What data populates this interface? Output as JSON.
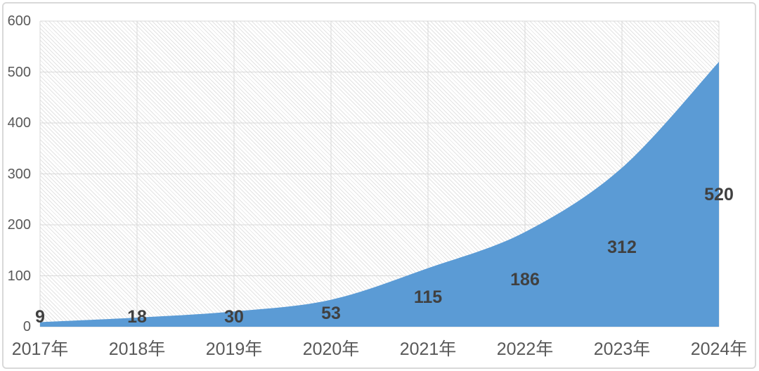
{
  "chart": {
    "background_color": "#FFFFFF",
    "frame_color": "#D9D9D9"
  },
  "chart_data": {
    "type": "area",
    "title": "",
    "xlabel": "",
    "ylabel": "",
    "categories": [
      "2017年",
      "2018年",
      "2019年",
      "2020年",
      "2021年",
      "2022年",
      "2023年",
      "2024年"
    ],
    "values": [
      9,
      18,
      30,
      53,
      115,
      186,
      312,
      520
    ],
    "data_labels": [
      "9",
      "18",
      "30",
      "53",
      "115",
      "186",
      "312",
      "520"
    ],
    "ylim": [
      0,
      600
    ],
    "yticks": [
      0,
      100,
      200,
      300,
      400,
      500,
      600
    ],
    "area_color": "#5B9BD5",
    "data_label_color": "#404040",
    "axis_label_color": "#595959",
    "grid_color": "#D9D9D9",
    "plot_hatch_color": "#E3E3E3",
    "smooth_line": true,
    "grid": "horizontal+vertical",
    "legend": "none",
    "data_label_position": "center"
  }
}
